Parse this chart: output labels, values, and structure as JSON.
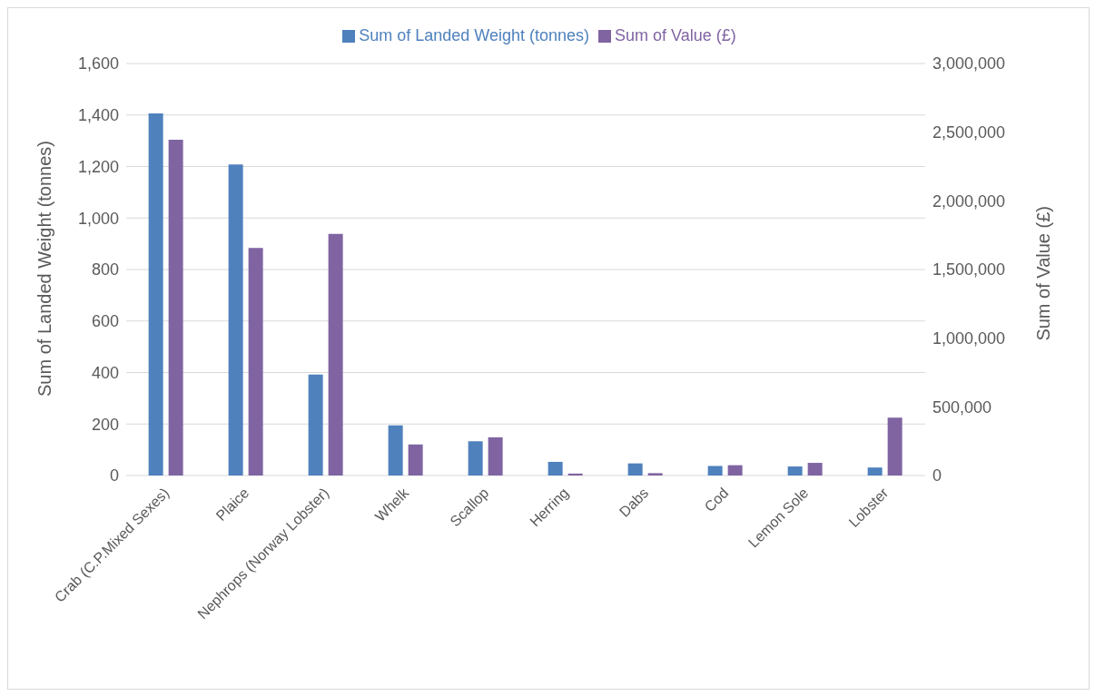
{
  "chart_data": {
    "type": "bar",
    "categories": [
      "Crab (C.P.Mixed Sexes)",
      "Plaice",
      "Nephrops (Norway Lobster)",
      "Whelk",
      "Scallop",
      "Herring",
      "Dabs",
      "Cod",
      "Lemon Sole",
      "Lobster"
    ],
    "series": [
      {
        "name": "Sum of Landed Weight (tonnes)",
        "color": "#4f81bd",
        "values": [
          1406,
          1208,
          392,
          195,
          133,
          53,
          47,
          37,
          35,
          31
        ]
      },
      {
        "name": "Sum of Value (£)",
        "color": "#8064a2",
        "axis": "y2",
        "values": [
          2445000,
          1657000,
          1760000,
          226000,
          278000,
          14000,
          17000,
          75000,
          92000,
          421000
        ]
      }
    ],
    "ylabel": "Sum of Landed Weight (tonnes)",
    "y2label": "Sum of Value (£)",
    "ylim": [
      0,
      1600
    ],
    "yticks": [
      0,
      200,
      400,
      600,
      800,
      {
        "value": 1000,
        "label": "1,000"
      },
      {
        "value": 1200,
        "label": "1,200"
      },
      {
        "value": 1400,
        "label": "1,400"
      },
      {
        "value": 1600,
        "label": "1,600"
      }
    ],
    "y2lim": [
      0,
      3000000
    ],
    "y2ticks": [
      0,
      {
        "value": 500000,
        "label": "500,000"
      },
      {
        "value": 1000000,
        "label": "1,000,000"
      },
      {
        "value": 1500000,
        "label": "1,500,000"
      },
      {
        "value": 2000000,
        "label": "2,000,000"
      },
      {
        "value": 2500000,
        "label": "2,500,000"
      },
      {
        "value": 3000000,
        "label": "3,000,000"
      }
    ],
    "grid": "y",
    "legend": "top"
  }
}
